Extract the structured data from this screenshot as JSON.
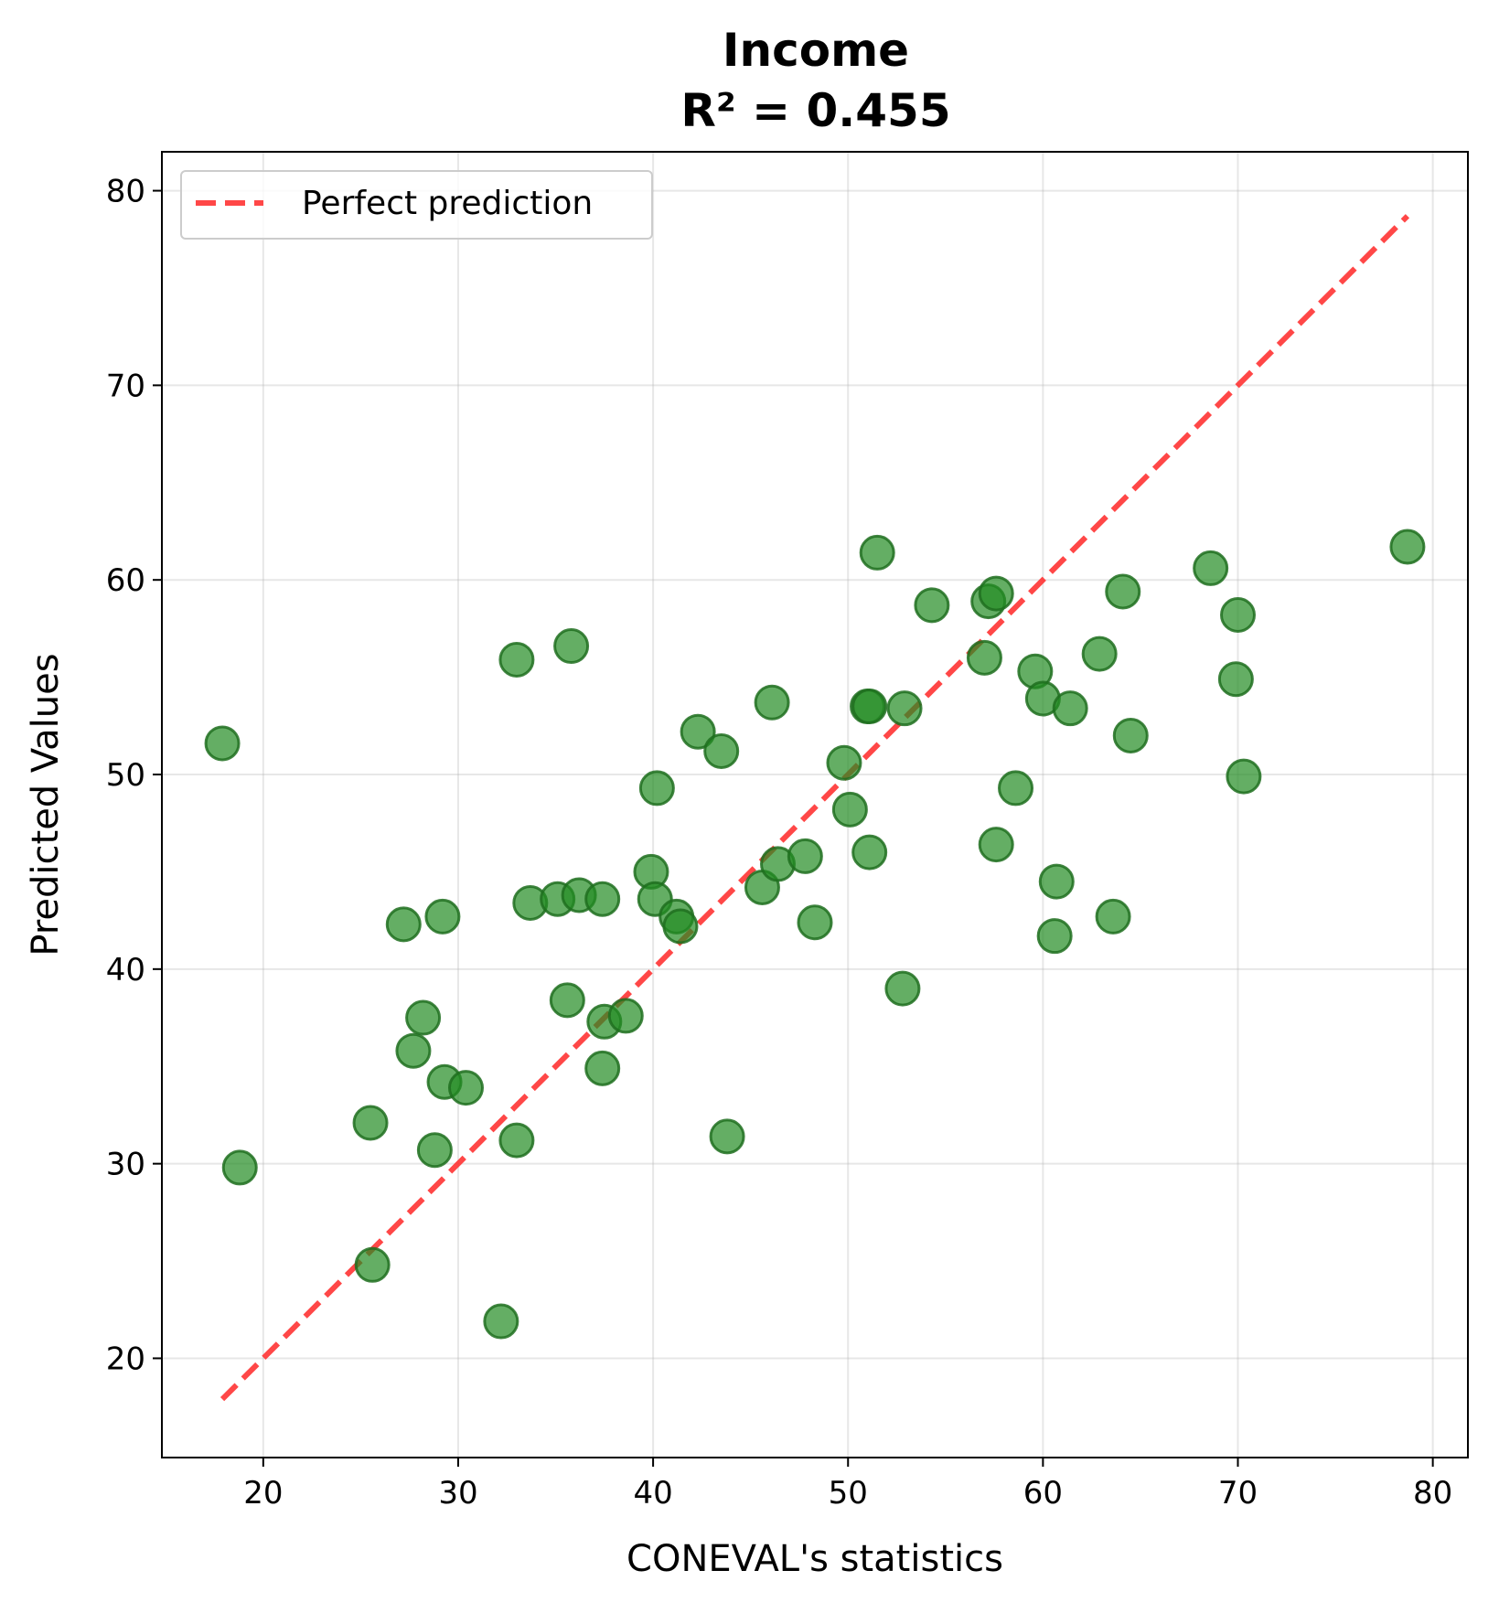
{
  "chart_data": {
    "type": "scatter",
    "title": "Income",
    "subtitle": "R² = 0.455",
    "xlabel": "CONEVAL's statistics",
    "ylabel": "Predicted Values",
    "xlim": [
      14.8,
      81.8
    ],
    "ylim": [
      14.9,
      82.0
    ],
    "xticks": [
      20,
      30,
      40,
      50,
      60,
      70,
      80
    ],
    "yticks": [
      20,
      30,
      40,
      50,
      60,
      70,
      80
    ],
    "grid": true,
    "legend": {
      "placement": "top-left",
      "entries": [
        "Perfect prediction"
      ]
    },
    "colors": {
      "points": "#228B22",
      "point_edge": "#1f6e1f",
      "reference_line": "#ff3333"
    },
    "reference_line": {
      "name": "Perfect prediction",
      "x": [
        17.9,
        78.7
      ],
      "y": [
        17.9,
        78.7
      ]
    },
    "points": [
      [
        17.9,
        51.6
      ],
      [
        18.8,
        29.8
      ],
      [
        25.5,
        32.1
      ],
      [
        25.6,
        24.8
      ],
      [
        27.2,
        42.3
      ],
      [
        27.7,
        35.8
      ],
      [
        28.2,
        37.5
      ],
      [
        28.8,
        30.7
      ],
      [
        29.2,
        42.7
      ],
      [
        29.3,
        34.2
      ],
      [
        30.4,
        33.9
      ],
      [
        32.2,
        21.9
      ],
      [
        33.0,
        55.9
      ],
      [
        33.0,
        31.2
      ],
      [
        33.7,
        43.4
      ],
      [
        35.1,
        43.6
      ],
      [
        35.6,
        38.4
      ],
      [
        35.8,
        56.6
      ],
      [
        36.2,
        43.8
      ],
      [
        37.4,
        43.6
      ],
      [
        37.4,
        34.9
      ],
      [
        37.5,
        37.3
      ],
      [
        38.6,
        37.6
      ],
      [
        39.9,
        45.0
      ],
      [
        40.1,
        43.6
      ],
      [
        40.2,
        49.3
      ],
      [
        41.2,
        42.7
      ],
      [
        41.4,
        42.2
      ],
      [
        42.3,
        52.2
      ],
      [
        43.5,
        51.2
      ],
      [
        43.8,
        31.4
      ],
      [
        45.6,
        44.2
      ],
      [
        46.1,
        53.7
      ],
      [
        46.4,
        45.4
      ],
      [
        47.8,
        45.8
      ],
      [
        48.3,
        42.4
      ],
      [
        49.8,
        50.6
      ],
      [
        50.1,
        48.2
      ],
      [
        51.0,
        53.5
      ],
      [
        51.1,
        53.5
      ],
      [
        51.1,
        46.0
      ],
      [
        51.5,
        61.4
      ],
      [
        52.8,
        39.0
      ],
      [
        52.9,
        53.4
      ],
      [
        54.3,
        58.7
      ],
      [
        57.0,
        56.0
      ],
      [
        57.2,
        58.9
      ],
      [
        57.6,
        59.3
      ],
      [
        57.6,
        46.4
      ],
      [
        58.6,
        49.3
      ],
      [
        59.6,
        55.3
      ],
      [
        60.0,
        53.9
      ],
      [
        60.6,
        41.7
      ],
      [
        60.7,
        44.5
      ],
      [
        61.4,
        53.4
      ],
      [
        62.9,
        56.2
      ],
      [
        63.6,
        42.7
      ],
      [
        64.1,
        59.4
      ],
      [
        64.5,
        52.0
      ],
      [
        68.6,
        60.6
      ],
      [
        69.9,
        54.9
      ],
      [
        70.0,
        58.2
      ],
      [
        70.3,
        49.9
      ],
      [
        78.7,
        61.7
      ]
    ]
  }
}
